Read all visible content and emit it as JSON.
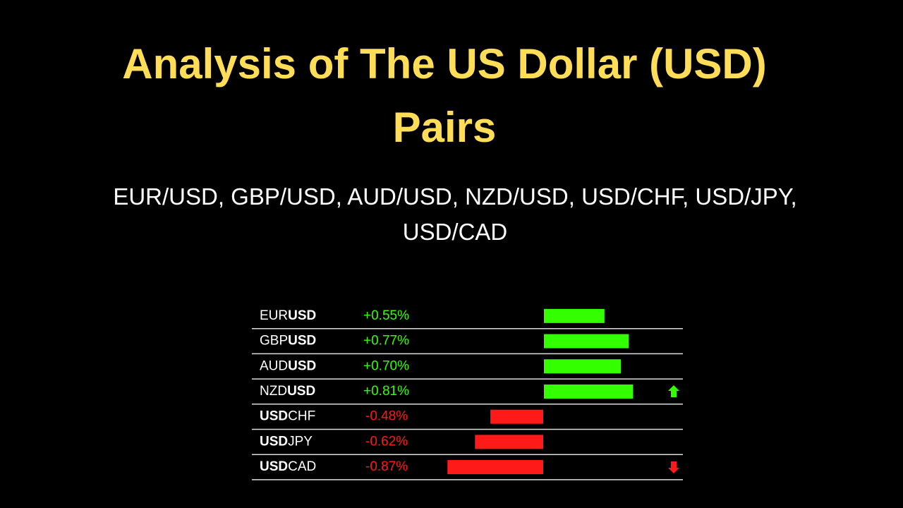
{
  "chart_data": {
    "type": "bar",
    "orientation": "horizontal",
    "title": "Analysis of The US Dollar (USD) Pairs",
    "subtitle": "EUR/USD, GBP/USD, AUD/USD, NZD/USD, USD/CHF, USD/JPY, USD/CAD",
    "categories": [
      [
        "EUR",
        "USD"
      ],
      [
        "GBP",
        "USD"
      ],
      [
        "AUD",
        "USD"
      ],
      [
        "NZD",
        "USD"
      ],
      [
        "USD",
        "CHF"
      ],
      [
        "USD",
        "JPY"
      ],
      [
        "USD",
        "CAD"
      ]
    ],
    "bold_part": [
      1,
      1,
      1,
      1,
      0,
      0,
      0
    ],
    "values": [
      0.55,
      0.77,
      0.7,
      0.81,
      -0.48,
      -0.62,
      -0.87
    ],
    "value_labels": [
      "+0.55%",
      "+0.77%",
      "+0.70%",
      "+0.81%",
      "-0.48%",
      "-0.62%",
      "-0.87%"
    ],
    "arrows": [
      null,
      null,
      null,
      "up",
      null,
      null,
      "down"
    ],
    "positive_color": "#33ff00",
    "negative_color": "#ff1a1a"
  }
}
